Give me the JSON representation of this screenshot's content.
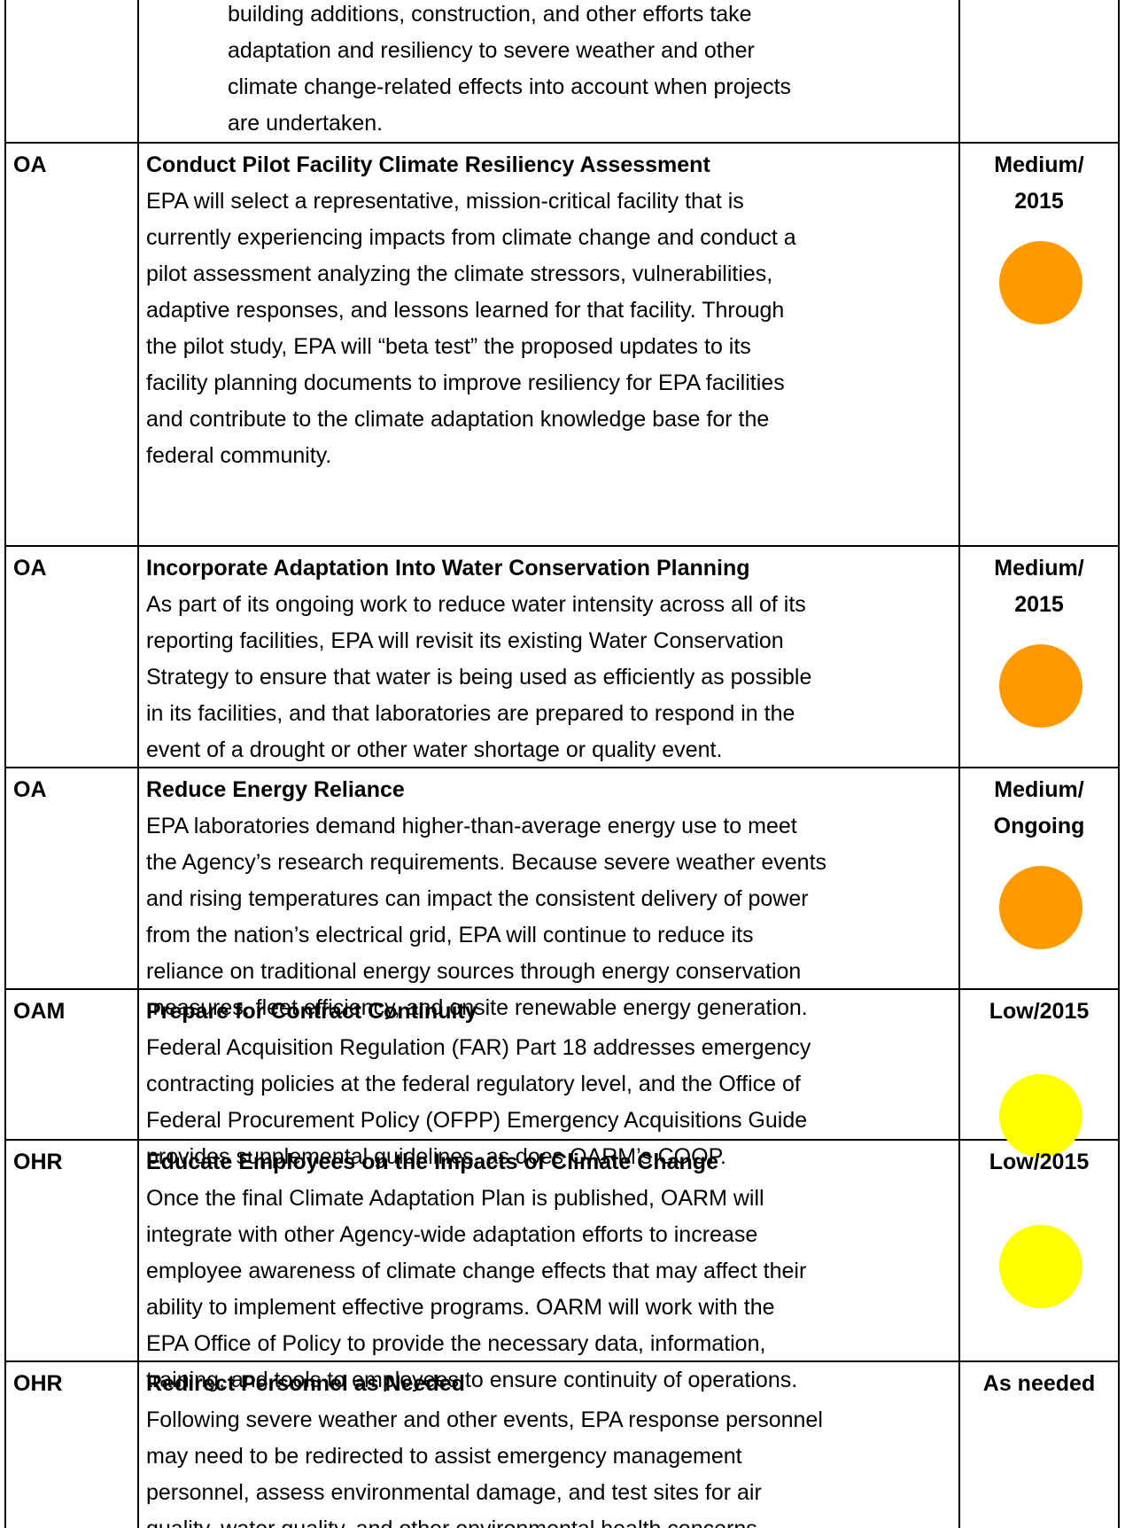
{
  "table": {
    "rows": [
      {
        "office": null,
        "title": null,
        "lines": [
          "building additions, construction, and other efforts take",
          "adaptation and resiliency to severe weather and other",
          "climate change-related effects into account when projects",
          "are undertaken."
        ],
        "indent": true,
        "priority": [],
        "circle_color": null
      },
      {
        "office": "OA",
        "title": "Conduct Pilot Facility Climate Resiliency Assessment",
        "lines": [
          "EPA will select a representative, mission-critical facility that is",
          "currently experiencing impacts from climate change and conduct a",
          "pilot assessment analyzing the climate stressors, vulnerabilities,",
          "adaptive responses, and lessons learned for that facility. Through",
          "the pilot study, EPA will “beta test” the proposed updates to its",
          "facility planning documents to improve resiliency for EPA facilities",
          "and contribute to the climate adaptation knowledge base for the",
          "federal community."
        ],
        "priority": [
          "Medium/",
          "2015"
        ],
        "circle_color": "#ff9900"
      },
      {
        "office": "OA",
        "title": "Incorporate Adaptation Into Water Conservation Planning",
        "lines": [
          "As part of its ongoing work to reduce water intensity across all of its",
          "reporting facilities, EPA will revisit its existing Water Conservation",
          "Strategy to ensure that water is being used as efficiently as possible",
          "in its facilities, and that laboratories are prepared to respond in the",
          "event of a drought or other water shortage or quality event."
        ],
        "priority": [
          "Medium/",
          "2015"
        ],
        "circle_color": "#ff9900"
      },
      {
        "office": "OA",
        "title": "Reduce Energy Reliance",
        "lines": [
          "EPA laboratories demand higher-than-average energy use to meet",
          "the Agency’s research requirements. Because severe weather events",
          "and rising temperatures can impact the consistent delivery of power",
          "from the nation’s electrical grid, EPA will continue to reduce its",
          "reliance on traditional energy sources through energy conservation",
          "measures, fleet efficiency, and onsite renewable energy generation."
        ],
        "priority": [
          "Medium/",
          "Ongoing"
        ],
        "circle_color": "#ff9900"
      },
      {
        "office": "OAM",
        "title": "Prepare for Contract Continuity",
        "lines": [
          "Federal Acquisition Regulation (FAR) Part 18 addresses emergency",
          "contracting policies at the federal regulatory level, and the Office of",
          "Federal Procurement Policy (OFPP) Emergency Acquisitions Guide",
          "provides supplemental guidelines, as does OARM’s COOP."
        ],
        "priority": [
          "Low/2015"
        ],
        "circle_color": "#ffff00"
      },
      {
        "office": "OHR",
        "title": "Educate Employees on the Impacts of Climate Change",
        "lines": [
          "Once the final Climate Adaptation Plan is published, OARM will",
          "integrate with other Agency-wide adaptation efforts to increase",
          "employee awareness of climate change effects that may affect their",
          "ability to implement effective programs. OARM will work with the",
          "EPA Office of Policy to provide the necessary data, information,",
          "training, and tools to employees to ensure continuity of operations."
        ],
        "priority": [
          "Low/2015"
        ],
        "circle_color": "#ffff00"
      },
      {
        "office": "OHR",
        "title": "Redirect Personnel as Needed",
        "lines": [
          "Following severe weather and other events, EPA response personnel",
          "may need to be redirected to assist emergency management",
          "personnel, assess environmental damage, and test sites for air",
          "quality, water quality, and other environmental health concerns."
        ],
        "priority": [
          "As needed"
        ],
        "circle_color": null
      }
    ]
  }
}
